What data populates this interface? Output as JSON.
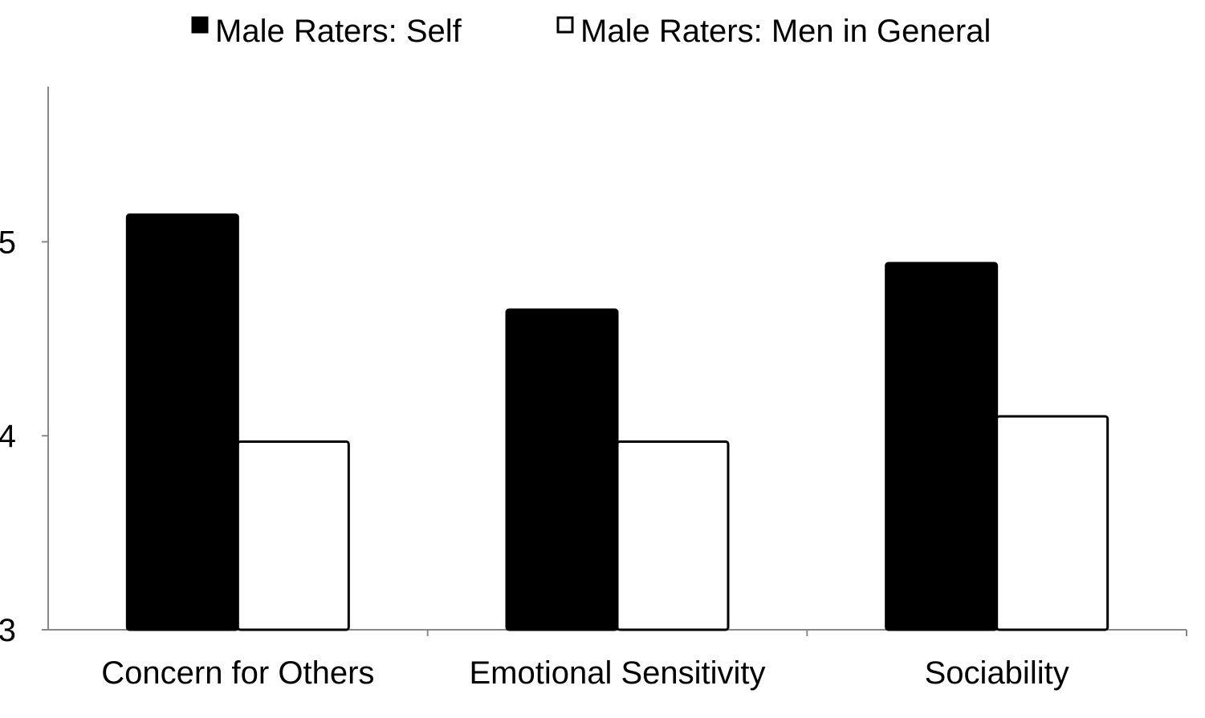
{
  "chart_data": {
    "type": "bar",
    "title": "",
    "xlabel": "",
    "ylabel": "",
    "categories": [
      "Concern for Others",
      "Emotional Sensitivity",
      "Sociability"
    ],
    "series": [
      {
        "name": "Male Raters: Self",
        "values": [
          5.14,
          4.65,
          4.89
        ],
        "color": "#000000"
      },
      {
        "name": "Male Raters: Men in General",
        "values": [
          3.97,
          3.97,
          4.1
        ],
        "color": "#ffffff"
      }
    ],
    "ylim": [
      3,
      5.8
    ],
    "yticks": [
      "3",
      "4",
      "5"
    ],
    "grid": false,
    "legend": "top"
  }
}
